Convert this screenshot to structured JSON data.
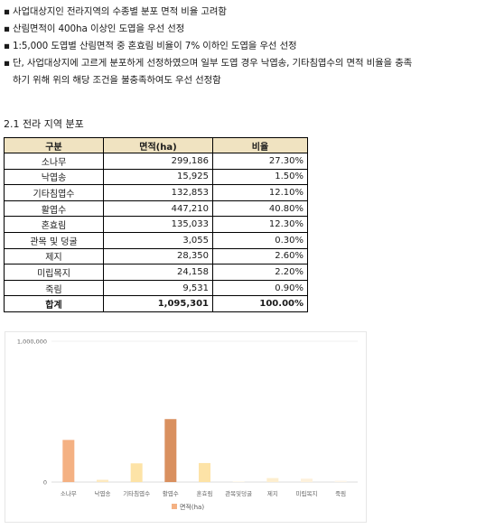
{
  "bullets": [
    {
      "marker": "▪",
      "text": "사업대상지인 전라지역의 수종별 분포 면적 비율 고려함"
    },
    {
      "marker": "▪",
      "text": "산림면적이 400ha 이상인 도엽을 우선 선정"
    },
    {
      "marker": "▪",
      "text": "1:5,000 도엽별 산림면적 중 혼효림 비율이 7% 이하인 도엽을 우선 선정"
    },
    {
      "marker": "▪",
      "text": "단, 사업대상지에 고르게 분포하게 선정하였으며 일부 도엽 경우 낙엽송, 기타침엽수의 면적 비율을 충족",
      "continuation": "하기 위해 위의 해당 조건을 불충족하여도 우선 선정함"
    }
  ],
  "section": {
    "title": "2.1 전라 지역 분포"
  },
  "table": {
    "headers": [
      "구분",
      "면적(ha)",
      "비율"
    ],
    "rows": [
      [
        "소나무",
        "299,186",
        "27.30%"
      ],
      [
        "낙엽송",
        "15,925",
        "1.50%"
      ],
      [
        "기타침엽수",
        "132,853",
        "12.10%"
      ],
      [
        "활엽수",
        "447,210",
        "40.80%"
      ],
      [
        "혼효림",
        "135,033",
        "12.30%"
      ],
      [
        "관목 및 덩굴",
        "3,055",
        "0.30%"
      ],
      [
        "제지",
        "28,350",
        "2.60%"
      ],
      [
        "미립목지",
        "24,158",
        "2.20%"
      ],
      [
        "죽림",
        "9,531",
        "0.90%"
      ]
    ],
    "total": [
      "합계",
      "1,095,301",
      "100.00%"
    ]
  },
  "chart_data": {
    "type": "bar",
    "categories": [
      "소나무",
      "낙엽송",
      "기타침엽수",
      "활엽수",
      "혼효림",
      "관목및덩굴",
      "제지",
      "미립목지",
      "죽림"
    ],
    "series": [
      {
        "name": "면적(ha)",
        "values": [
          299186,
          15925,
          132853,
          447210,
          135033,
          3055,
          28350,
          24158,
          9531
        ]
      }
    ],
    "colors": [
      "#f4b183",
      "#fde9bf",
      "#fde3a7",
      "#d9905f",
      "#fde3a7",
      "#fdf1d9",
      "#fdeecf",
      "#fdf1dc",
      "#fdf5e8"
    ],
    "ylim": [
      0,
      1000000
    ],
    "ytick_labels": [
      "0",
      "1,000,000"
    ],
    "legend_position": "bottom",
    "grid": false
  }
}
